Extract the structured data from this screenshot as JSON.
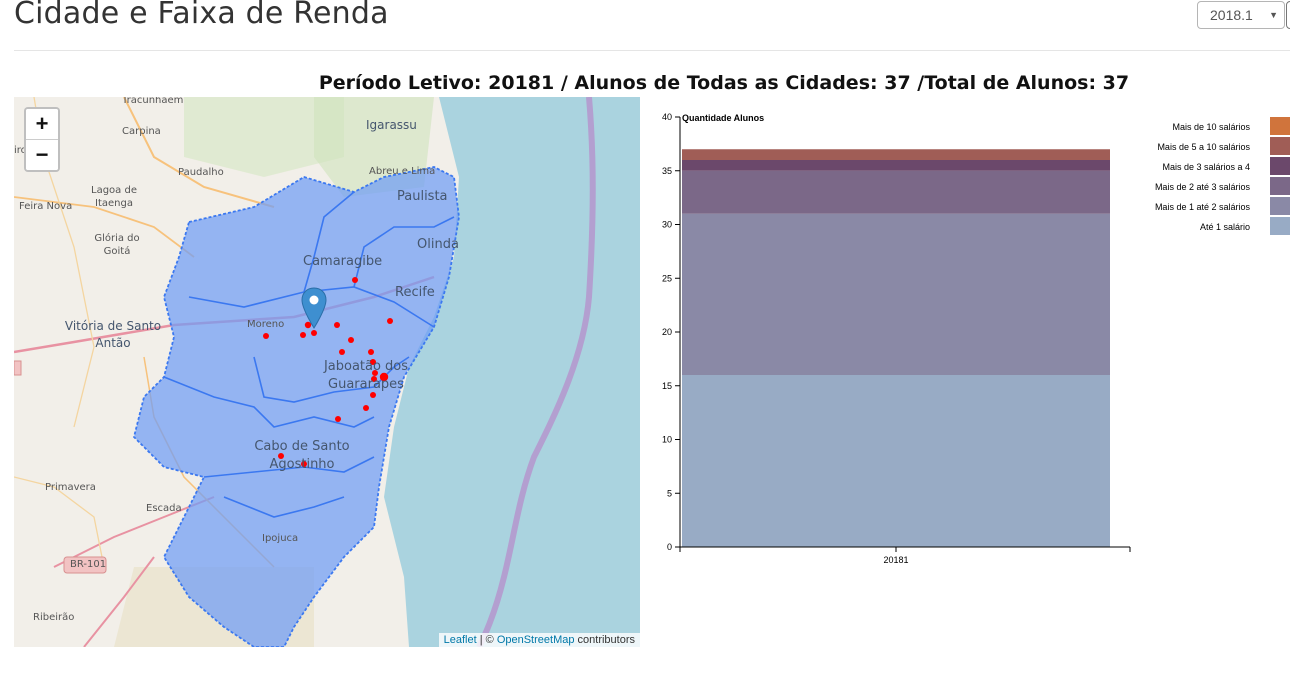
{
  "page": {
    "title": "Cidade e Faixa de Renda",
    "period_select": {
      "value": "2018.1"
    },
    "summary": "Período Letivo: 20181 / Alunos de Todas as Cidades: 37 /Total de Alunos: 37"
  },
  "map": {
    "zoom_in": "+",
    "zoom_out": "−",
    "attribution": {
      "leaflet": "Leaflet",
      "sep": " | © ",
      "osm": "OpenStreetMap",
      "suffix": " contributors"
    },
    "labels": [
      {
        "text": "Tracunhaém",
        "cls": "small"
      },
      {
        "text": "Carpina",
        "cls": "small"
      },
      {
        "text": "Igarassu",
        "cls": "mid"
      },
      {
        "text": "Abreu e Lima",
        "cls": "small"
      },
      {
        "text": "Paudalho",
        "cls": "small"
      },
      {
        "text": "Lagoa de Itaenga",
        "cls": "small"
      },
      {
        "text": "Feira Nova",
        "cls": "small"
      },
      {
        "text": "Paulista",
        "cls": "big"
      },
      {
        "text": "Olinda",
        "cls": "big"
      },
      {
        "text": "Glória do Goitá",
        "cls": "small"
      },
      {
        "text": "Camaragibe",
        "cls": "big"
      },
      {
        "text": "Recife",
        "cls": "big"
      },
      {
        "text": "Vitória de Santo Antão",
        "cls": "mid"
      },
      {
        "text": "Moreno",
        "cls": "small"
      },
      {
        "text": "Jaboatão dos Guararapes",
        "cls": "big"
      },
      {
        "text": "Cabo de Santo Agostinho",
        "cls": "big"
      },
      {
        "text": "Primavera",
        "cls": "small"
      },
      {
        "text": "Escada",
        "cls": "small"
      },
      {
        "text": "Ipojuca",
        "cls": "small"
      },
      {
        "text": "BR-101",
        "cls": "small"
      },
      {
        "text": "Ribeirão",
        "cls": "small"
      },
      {
        "text": "iro",
        "cls": "small"
      }
    ]
  },
  "colors": {
    "region_fill": "#6f9cf5",
    "region_stroke": "#3b78f0",
    "sea": "#aad3df",
    "marker": "#3e8fd0",
    "dot": "#ff0000"
  },
  "chart_data": {
    "type": "bar",
    "stacked": true,
    "categories": [
      "20181"
    ],
    "ylabel": "Quantidade Alunos",
    "ylim": [
      0,
      40
    ],
    "yticks": [
      0,
      5,
      10,
      15,
      20,
      25,
      30,
      35,
      40
    ],
    "series": [
      {
        "name": "Até 1 salário",
        "values": [
          16
        ],
        "color": "#98abc5"
      },
      {
        "name": "Mais de 1 até 2 salários",
        "values": [
          15
        ],
        "color": "#8a89a6"
      },
      {
        "name": "Mais de 2 até 3 salários",
        "values": [
          4
        ],
        "color": "#7b6888"
      },
      {
        "name": "Mais de 3 salários a 4",
        "values": [
          1
        ],
        "color": "#6b486b"
      },
      {
        "name": "Mais de 5 a 10 salários",
        "values": [
          1
        ],
        "color": "#a05d56"
      },
      {
        "name": "Mais de 10 salários",
        "values": [
          0
        ],
        "color": "#d0743c"
      }
    ],
    "legend_position": "top-right",
    "grid": false
  }
}
